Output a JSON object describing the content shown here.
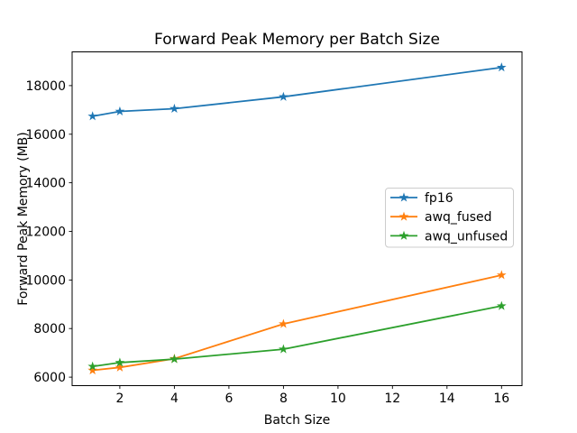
{
  "figure": {
    "background": "#ffffff"
  },
  "chart_data": {
    "type": "line",
    "title": "Forward Peak Memory per Batch Size",
    "xlabel": "Batch Size",
    "ylabel": "Forward Peak Memory (MB)",
    "x": [
      1,
      2,
      4,
      8,
      16
    ],
    "series": [
      {
        "name": "fp16",
        "color": "#1f77b4",
        "marker": "star",
        "values": [
          16740,
          16940,
          17050,
          17540,
          18750
        ]
      },
      {
        "name": "awq_fused",
        "color": "#ff7f0e",
        "marker": "star",
        "values": [
          6280,
          6400,
          6760,
          8190,
          10200
        ]
      },
      {
        "name": "awq_unfused",
        "color": "#2ca02c",
        "marker": "star",
        "values": [
          6440,
          6600,
          6740,
          7150,
          8930
        ]
      }
    ],
    "xticks": [
      2,
      4,
      6,
      8,
      10,
      12,
      14,
      16
    ],
    "yticks": [
      6000,
      8000,
      10000,
      12000,
      14000,
      16000,
      18000
    ],
    "xlim": [
      0.25,
      16.75
    ],
    "ylim": [
      5650,
      19390
    ],
    "grid": false,
    "legend": {
      "position": "center right",
      "entries": [
        "fp16",
        "awq_fused",
        "awq_unfused"
      ],
      "border_color": "#cccccc",
      "background": "#ffffff"
    },
    "axis_color": "#000000"
  }
}
